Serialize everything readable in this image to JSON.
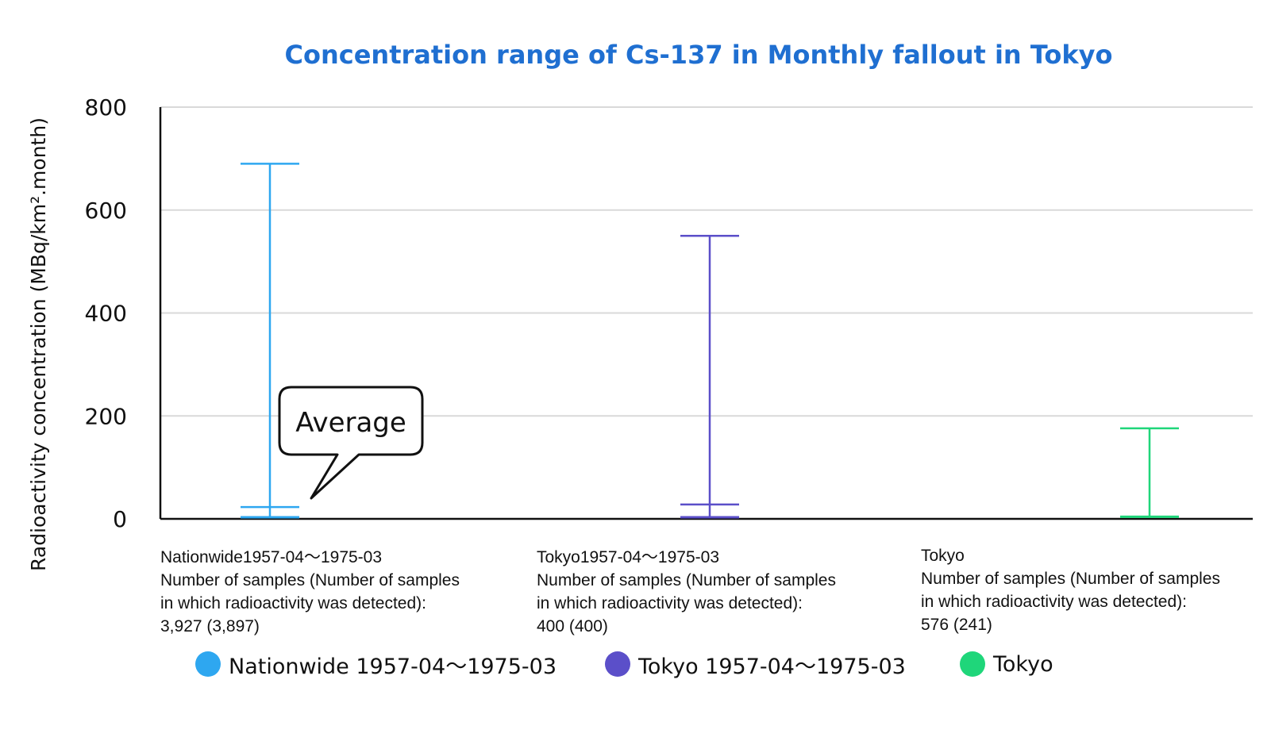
{
  "chart_data": {
    "type": "range",
    "title": "Concentration range of Cs-137 in Monthly fallout in Tokyo",
    "ylabel": "Radioactivity concentration (MBq/km².month)",
    "ylim": [
      0,
      800
    ],
    "yticks": [
      0,
      200,
      400,
      600,
      800
    ],
    "grid": true,
    "categories": [
      {
        "name": "Nationwide1957-04〜1975-03",
        "lines": [
          "Number of samples (Number of samples",
          "in which radioactivity was detected):",
          "3,927 (3,897)"
        ]
      },
      {
        "name": "Tokyo1957-04〜1975-03",
        "lines": [
          "Number of samples (Number of samples",
          "in which radioactivity was detected):",
          "400 (400)"
        ]
      },
      {
        "name": "Tokyo",
        "lines": [
          "Number of samples (Number of samples",
          "in which radioactivity was detected):",
          "576 (241)"
        ]
      }
    ],
    "series": [
      {
        "name": "Nationwide 1957-04〜1975-03",
        "color": "#2ea7f0",
        "min": 3,
        "average": 23,
        "max": 690
      },
      {
        "name": "Tokyo 1957-04〜1975-03",
        "color": "#5b4fc9",
        "min": 3,
        "average": 28,
        "max": 550
      },
      {
        "name": "Tokyo",
        "color": "#1fd67a",
        "min": 4,
        "max": 176
      }
    ],
    "annotation": {
      "text": "Average"
    },
    "legend_position": "bottom"
  }
}
